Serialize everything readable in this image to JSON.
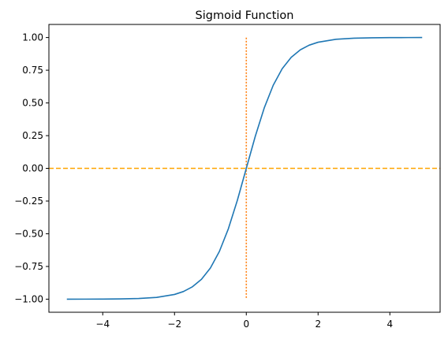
{
  "chart_data": {
    "type": "line",
    "title": "Sigmoid Function",
    "xlabel": "",
    "ylabel": "",
    "xlim": [
      -5.5,
      5.4
    ],
    "ylim": [
      -1.1,
      1.1
    ],
    "x_ticks": [
      -4,
      -2,
      0,
      2,
      4
    ],
    "x_tick_labels": [
      "−4",
      "−2",
      "0",
      "2",
      "4"
    ],
    "y_ticks": [
      -1.0,
      -0.75,
      -0.5,
      -0.25,
      0.0,
      0.25,
      0.5,
      0.75,
      1.0
    ],
    "y_tick_labels": [
      "−1.00",
      "−0.75",
      "−0.50",
      "−0.25",
      "0.00",
      "0.25",
      "0.50",
      "0.75",
      "1.00"
    ],
    "grid": false,
    "series": [
      {
        "color": "#1f77b4",
        "style": "solid",
        "x": [
          -5.0,
          -4.5,
          -4.0,
          -3.5,
          -3.0,
          -2.5,
          -2.0,
          -1.75,
          -1.5,
          -1.25,
          -1.0,
          -0.75,
          -0.5,
          -0.25,
          0.0,
          0.25,
          0.5,
          0.75,
          1.0,
          1.25,
          1.5,
          1.75,
          2.0,
          2.5,
          3.0,
          3.5,
          4.0,
          4.5,
          4.9
        ],
        "y": [
          -0.9999,
          -0.9998,
          -0.9993,
          -0.9982,
          -0.9951,
          -0.9866,
          -0.964,
          -0.9414,
          -0.9051,
          -0.8483,
          -0.7616,
          -0.6351,
          -0.4621,
          -0.2449,
          0.0,
          0.2449,
          0.4621,
          0.6351,
          0.7616,
          0.8483,
          0.9051,
          0.9414,
          0.964,
          0.9866,
          0.9951,
          0.9982,
          0.9993,
          0.9998,
          0.9999
        ]
      }
    ],
    "reference_lines": [
      {
        "orientation": "horizontal",
        "value": 0.0,
        "color": "#ffa500",
        "style": "dashed"
      },
      {
        "orientation": "vertical",
        "value": 0.0,
        "from": -0.99,
        "to": 1.0,
        "color": "#ff7f0e",
        "style": "dotted"
      }
    ]
  }
}
